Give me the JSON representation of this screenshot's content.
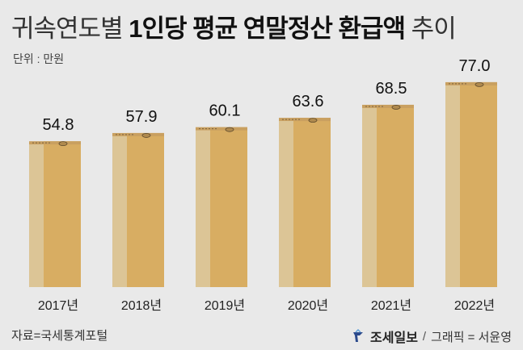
{
  "title_light_1": "귀속연도별",
  "title_bold": "1인당 평균 연말정산 환급액",
  "title_light_2": "추이",
  "unit": "단위 : 만원",
  "source": "자료=국세통계포털",
  "brand": "조세일보",
  "credit_sep": "/",
  "credit": "그래픽 = 서윤영",
  "colors": {
    "background": "#e9e9e9",
    "box_front": "#d8ad62",
    "box_side": "#dcc596",
    "box_top": "#c9a060",
    "brand_blue": "#2b4a8c"
  },
  "chart_data": {
    "type": "bar",
    "title": "귀속연도별 1인당 평균 연말정산 환급액 추이",
    "ylabel": "단위 : 만원",
    "categories": [
      "2017년",
      "2018년",
      "2019년",
      "2020년",
      "2021년",
      "2022년"
    ],
    "values": [
      54.8,
      57.9,
      60.1,
      63.6,
      68.5,
      77.0
    ],
    "value_labels": [
      "54.8",
      "57.9",
      "60.1",
      "63.6",
      "68.5",
      "77.0"
    ],
    "ylim": [
      0,
      77.0
    ]
  }
}
